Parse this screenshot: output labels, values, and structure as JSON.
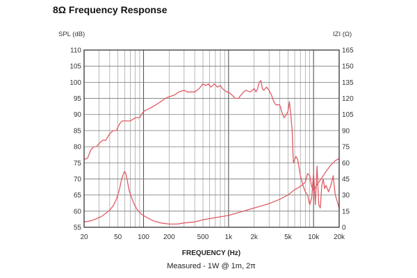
{
  "chart_data": {
    "type": "line",
    "title": "8Ω Frequency Response",
    "subtitle": "Measured - 1W @ 1m, 2π",
    "xlabel": "FREQUENCY (Hz)",
    "ylabel_left": "SPL (dB)",
    "ylabel_right": "IZI (Ω)",
    "x_scale": "log",
    "xlim": [
      20,
      20000
    ],
    "ylim_left": [
      55,
      110
    ],
    "ylim_right": [
      0,
      165
    ],
    "x_tick_values": [
      20,
      50,
      100,
      200,
      500,
      1000,
      2000,
      5000,
      10000,
      20000
    ],
    "x_tick_labels": [
      "20",
      "50",
      "100",
      "200",
      "500",
      "1k",
      "2k",
      "5k",
      "10k",
      "20k"
    ],
    "y_left_ticks": [
      55,
      60,
      65,
      70,
      75,
      80,
      85,
      90,
      95,
      100,
      105,
      110
    ],
    "y_right_ticks": [
      0,
      15,
      30,
      45,
      60,
      75,
      90,
      105,
      120,
      135,
      150,
      165
    ],
    "grid": true,
    "line_color": "#e05b64",
    "series": [
      {
        "axis": "left",
        "x": [
          20,
          22,
          24,
          26,
          28,
          30,
          33,
          36,
          40,
          44,
          48,
          52,
          56,
          60,
          65,
          70,
          75,
          80,
          90,
          100,
          110,
          120,
          140,
          160,
          180,
          200,
          230,
          260,
          300,
          330,
          360,
          400,
          450,
          500,
          540,
          580,
          620,
          680,
          740,
          800,
          850,
          900,
          950,
          1000,
          1100,
          1200,
          1300,
          1400,
          1500,
          1600,
          1800,
          2000,
          2100,
          2200,
          2300,
          2400,
          2500,
          2600,
          2700,
          2800,
          3000,
          3200,
          3400,
          3600,
          3800,
          4000,
          4200,
          4500,
          4800,
          5000,
          5200,
          5400,
          5600,
          5700,
          5800,
          6000,
          6200,
          6500,
          7000,
          7500,
          8000,
          8500,
          9000,
          9500,
          10000,
          10500,
          11000,
          11500,
          12000,
          12500,
          13000,
          13500,
          14000,
          15000,
          16000,
          17000,
          18000,
          19000,
          20000
        ],
        "values": [
          76,
          76.5,
          79,
          80,
          80,
          81,
          82,
          82,
          84,
          85,
          85,
          87,
          88,
          88,
          88,
          88,
          88.5,
          89,
          89,
          91,
          91.5,
          92,
          93,
          94,
          95,
          95.5,
          96,
          97,
          97.5,
          97,
          97,
          97,
          98,
          99.5,
          99,
          99.5,
          98.5,
          99.5,
          98.5,
          99,
          98,
          97.5,
          97,
          97,
          96,
          95,
          95,
          96,
          97,
          97.5,
          97,
          98,
          97,
          98,
          100,
          100.5,
          98,
          97.5,
          98,
          98.5,
          97.5,
          96,
          94,
          93,
          93,
          93,
          91,
          89,
          90,
          91,
          94,
          90,
          85,
          79,
          75,
          76,
          77,
          76,
          71,
          68,
          66,
          65,
          62,
          64,
          72,
          62,
          74,
          62,
          61,
          68,
          70,
          67,
          68,
          66,
          68,
          71,
          65,
          63,
          61
        ]
      },
      {
        "axis": "right",
        "x": [
          20,
          24,
          28,
          32,
          36,
          40,
          44,
          48,
          52,
          55,
          58,
          60,
          62,
          65,
          68,
          72,
          78,
          85,
          95,
          110,
          130,
          160,
          200,
          250,
          300,
          400,
          500,
          700,
          1000,
          1500,
          2000,
          3000,
          4000,
          5000,
          6000,
          7000,
          7500,
          8000,
          8500,
          9000,
          9500,
          10000,
          11000,
          12000,
          13000,
          14000,
          15000,
          16000,
          17000,
          18000,
          19000,
          20000
        ],
        "values": [
          5,
          6,
          8,
          10,
          13,
          16,
          20,
          26,
          35,
          44,
          50,
          52,
          50,
          42,
          34,
          28,
          21,
          16,
          12,
          9,
          6,
          4,
          3,
          3,
          4,
          5,
          7,
          9,
          11,
          15,
          18,
          22,
          26,
          30,
          35,
          38,
          40,
          42,
          50,
          48,
          38,
          34,
          40,
          44,
          48,
          52,
          55,
          58,
          60,
          62,
          63,
          64
        ]
      }
    ]
  }
}
